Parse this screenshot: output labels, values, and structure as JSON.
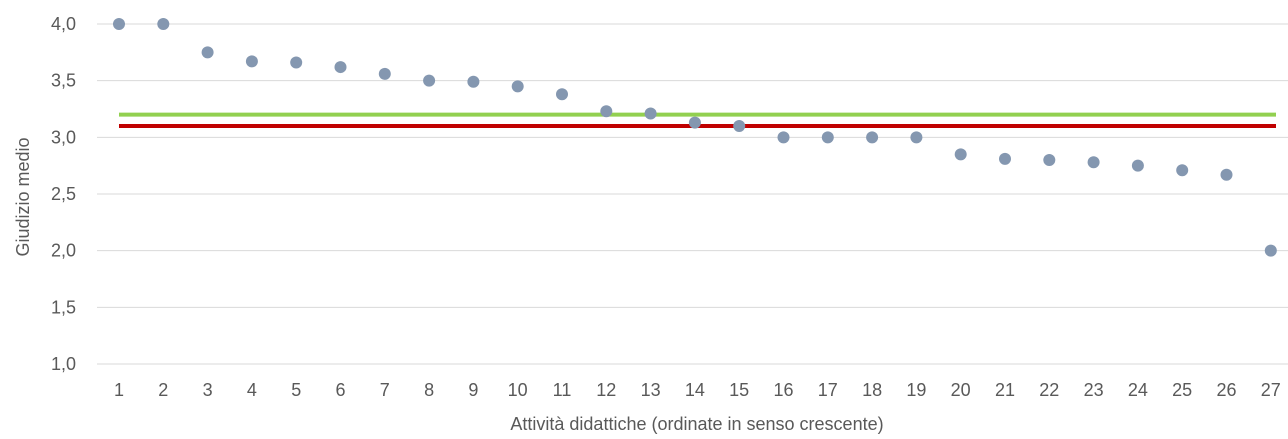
{
  "chart_data": {
    "type": "scatter",
    "title": "",
    "xlabel": "Attività didattiche (ordinate in senso crescente)",
    "ylabel": "Giudizio medio",
    "x_ticks": [
      "1",
      "2",
      "3",
      "4",
      "5",
      "6",
      "7",
      "8",
      "9",
      "10",
      "11",
      "12",
      "13",
      "14",
      "15",
      "16",
      "17",
      "18",
      "19",
      "20",
      "21",
      "22",
      "23",
      "24",
      "25",
      "26",
      "27"
    ],
    "y_ticks": [
      "4,0",
      "3,5",
      "3,0",
      "2,5",
      "2,0",
      "1,5",
      "1,0"
    ],
    "ylim": [
      1.0,
      4.0
    ],
    "grid": true,
    "series": [
      {
        "color": "#8497b0",
        "x": [
          1,
          2,
          3,
          4,
          5,
          6,
          7,
          8,
          9,
          10,
          11,
          12,
          13,
          14,
          15,
          16,
          17,
          18,
          19,
          20,
          21,
          22,
          23,
          24,
          25,
          26,
          27
        ],
        "y": [
          4.0,
          4.0,
          3.75,
          3.67,
          3.66,
          3.62,
          3.56,
          3.5,
          3.49,
          3.45,
          3.38,
          3.23,
          3.21,
          3.13,
          3.1,
          3.0,
          3.0,
          3.0,
          3.0,
          2.85,
          2.81,
          2.8,
          2.78,
          2.75,
          2.71,
          2.67,
          2.0
        ]
      }
    ],
    "reference_lines": [
      {
        "y": 3.2,
        "color": "#92d050"
      },
      {
        "y": 3.1,
        "color": "#c00000"
      }
    ],
    "gridline_color": "#d9d9d9"
  }
}
